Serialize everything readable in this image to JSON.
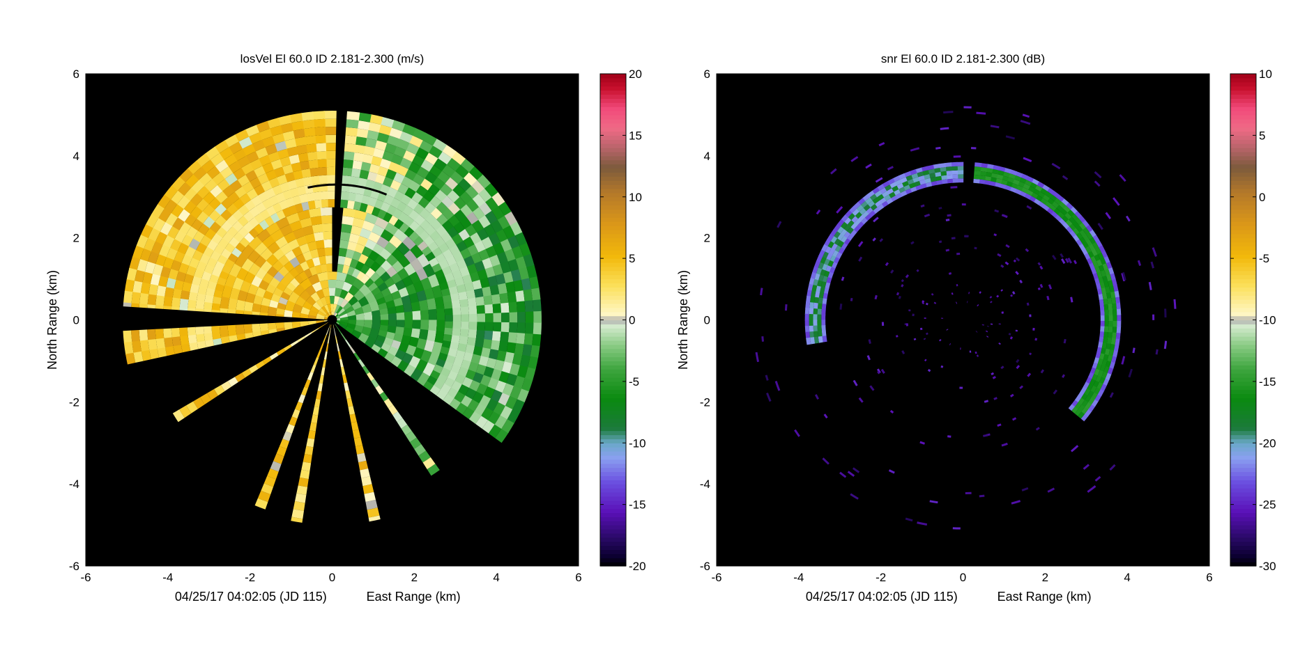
{
  "chart_data": [
    {
      "type": "heatmap",
      "title": "losVel    El 60.0    ID 2.181-2.300    (m/s)",
      "xlabel": "East Range (km)",
      "ylabel": "North Range (km)",
      "timestamp": "04/25/17 04:02:05 (JD 115)",
      "xlim": [
        -6,
        6
      ],
      "ylim": [
        -6,
        6
      ],
      "xticks": [
        "-6",
        "-4",
        "-2",
        "0",
        "2",
        "4",
        "6"
      ],
      "yticks": [
        "-6",
        "-4",
        "-2",
        "0",
        "2",
        "4",
        "6"
      ],
      "colorbar": {
        "range": [
          -20,
          20
        ],
        "ticks": [
          "20",
          "15",
          "10",
          "5",
          "0",
          "-5",
          "-10",
          "-15",
          "-20"
        ]
      },
      "scan": {
        "max_range_km": 5.1,
        "sectors_deg": [
          [
            -36,
            176
          ],
          [
            183,
            192
          ]
        ],
        "rays_deg": [
          212,
          249,
          260,
          282,
          304
        ],
        "ray_range_km": [
          4.5,
          4.9,
          5.0,
          5.0,
          4.5
        ],
        "gap_deg": 87,
        "clear_band_km": [
          3.0,
          3.45
        ]
      }
    },
    {
      "type": "heatmap",
      "title": "snr    El 60.0    ID 2.181-2.300    (dB)",
      "xlabel": "East Range (km)",
      "ylabel": "North Range (km)",
      "timestamp": "04/25/17 04:02:05 (JD 115)",
      "xlim": [
        -6,
        6
      ],
      "ylim": [
        -6,
        6
      ],
      "xticks": [
        "-6",
        "-4",
        "-2",
        "0",
        "2",
        "4",
        "6"
      ],
      "yticks": [
        "-6",
        "-4",
        "-2",
        "0",
        "2",
        "4",
        "6"
      ],
      "colorbar": {
        "range": [
          -30,
          10
        ],
        "ticks": [
          "10",
          "5",
          "0",
          "-5",
          "-10",
          "-15",
          "-20",
          "-25",
          "-30"
        ]
      },
      "ring": {
        "inner_km": 3.35,
        "outer_km": 3.85,
        "angle_range_deg": [
          -40,
          188
        ],
        "gap_deg": 87
      }
    }
  ]
}
